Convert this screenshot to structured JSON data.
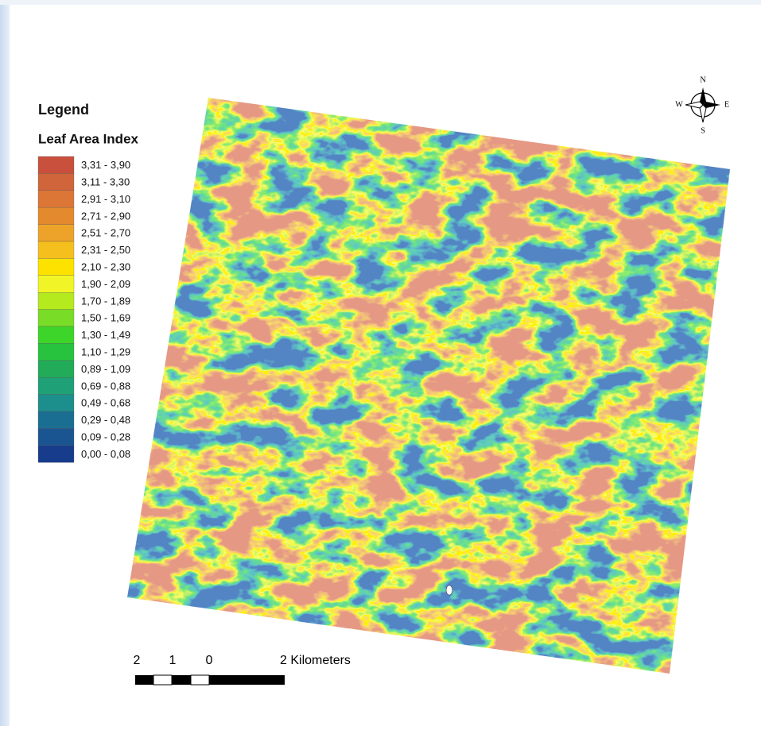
{
  "legend": {
    "title": "Legend",
    "subtitle": "Leaf Area Index",
    "classes": [
      {
        "label": "3,31 - 3,90",
        "color": "#c8503c"
      },
      {
        "label": "3,11 - 3,30",
        "color": "#d0643a"
      },
      {
        "label": "2,91 - 3,10",
        "color": "#db7636"
      },
      {
        "label": "2,71 - 2,90",
        "color": "#e38a2e"
      },
      {
        "label": "2,51 - 2,70",
        "color": "#eda32a"
      },
      {
        "label": "2,31 - 2,50",
        "color": "#f5c01e"
      },
      {
        "label": "2,10 - 2,30",
        "color": "#fde200"
      },
      {
        "label": "1,90 - 2,09",
        "color": "#f1f528"
      },
      {
        "label": "1,70 - 1,89",
        "color": "#b4ea1e"
      },
      {
        "label": "1,50 - 1,69",
        "color": "#79dc26"
      },
      {
        "label": "1,30 - 1,49",
        "color": "#3ed52a"
      },
      {
        "label": "1,10 - 1,29",
        "color": "#27c23e"
      },
      {
        "label": "0,89 - 1,09",
        "color": "#22ab58"
      },
      {
        "label": "0,69 - 0,88",
        "color": "#1fa076"
      },
      {
        "label": "0,49 - 0,68",
        "color": "#1c8e8c"
      },
      {
        "label": "0,29 - 0,48",
        "color": "#1a6e92"
      },
      {
        "label": "0,09 - 0,28",
        "color": "#1a5591"
      },
      {
        "label": "0,00 - 0,08",
        "color": "#173c8c"
      }
    ]
  },
  "scale_bar": {
    "labels": [
      "2",
      "1",
      "0",
      "2 Kilometers"
    ]
  },
  "north_arrow": {
    "labels": [
      "N",
      "S",
      "W",
      "E"
    ]
  }
}
